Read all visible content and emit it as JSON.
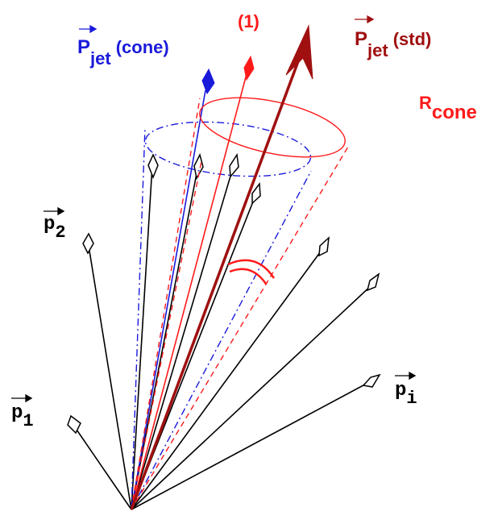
{
  "labels": {
    "p_jet_cone_main": "P",
    "p_jet_cone_sub": "jet",
    "p_jet_cone_suffix": "(cone)",
    "one": "(1)",
    "p_jet_std_main": "P",
    "p_jet_std_sub": "jet",
    "p_jet_std_suffix": "(std)",
    "r_cone_main": "R",
    "r_cone_sub": "cone",
    "p2_main": "p",
    "p2_sub": "2",
    "p1_main": "p",
    "p1_sub": "1",
    "pi_main": "p",
    "pi_sub": "i"
  },
  "colors": {
    "blue": "#1a1adb",
    "red": "#ff1a1a",
    "darkred": "#a01010",
    "black": "#000000"
  }
}
